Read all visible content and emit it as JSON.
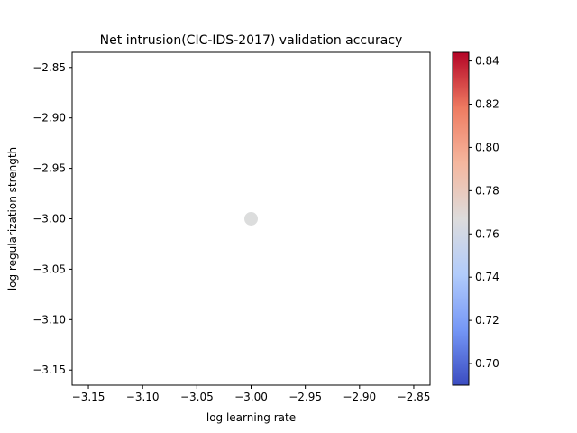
{
  "chart_data": {
    "type": "scatter",
    "title": "Net intrusion(CIC-IDS-2017) validation accuracy",
    "xlabel": "log learning rate",
    "ylabel": "log regularization strength",
    "xlim": [
      -3.165,
      -2.835
    ],
    "ylim": [
      -3.165,
      -2.835
    ],
    "xticks": [
      -3.15,
      -3.1,
      -3.05,
      -3.0,
      -2.95,
      -2.9,
      -2.85
    ],
    "xtick_labels": [
      "−3.15",
      "−3.10",
      "−3.05",
      "−3.00",
      "−2.95",
      "−2.90",
      "−2.85"
    ],
    "yticks": [
      -2.85,
      -2.9,
      -2.95,
      -3.0,
      -3.05,
      -3.1,
      -3.15
    ],
    "ytick_labels": [
      "−2.85",
      "−2.90",
      "−2.95",
      "−3.00",
      "−3.05",
      "−3.10",
      "−3.15"
    ],
    "points": [
      {
        "x": -3.0,
        "y": -3.0,
        "value": 0.767
      }
    ],
    "point_color": "#dcdddd",
    "colorbar": {
      "cmap": "coolwarm",
      "range": [
        0.69,
        0.844
      ],
      "ticks": [
        0.7,
        0.72,
        0.74,
        0.76,
        0.78,
        0.8,
        0.82,
        0.84
      ],
      "tick_labels": [
        "0.70",
        "0.72",
        "0.74",
        "0.76",
        "0.78",
        "0.80",
        "0.82",
        "0.84"
      ],
      "colors": [
        "#3b4cc0",
        "#7597f6",
        "#b2ccfb",
        "#dddcdc",
        "#f5b79e",
        "#ee7b61",
        "#b40426"
      ]
    },
    "grid": false
  }
}
